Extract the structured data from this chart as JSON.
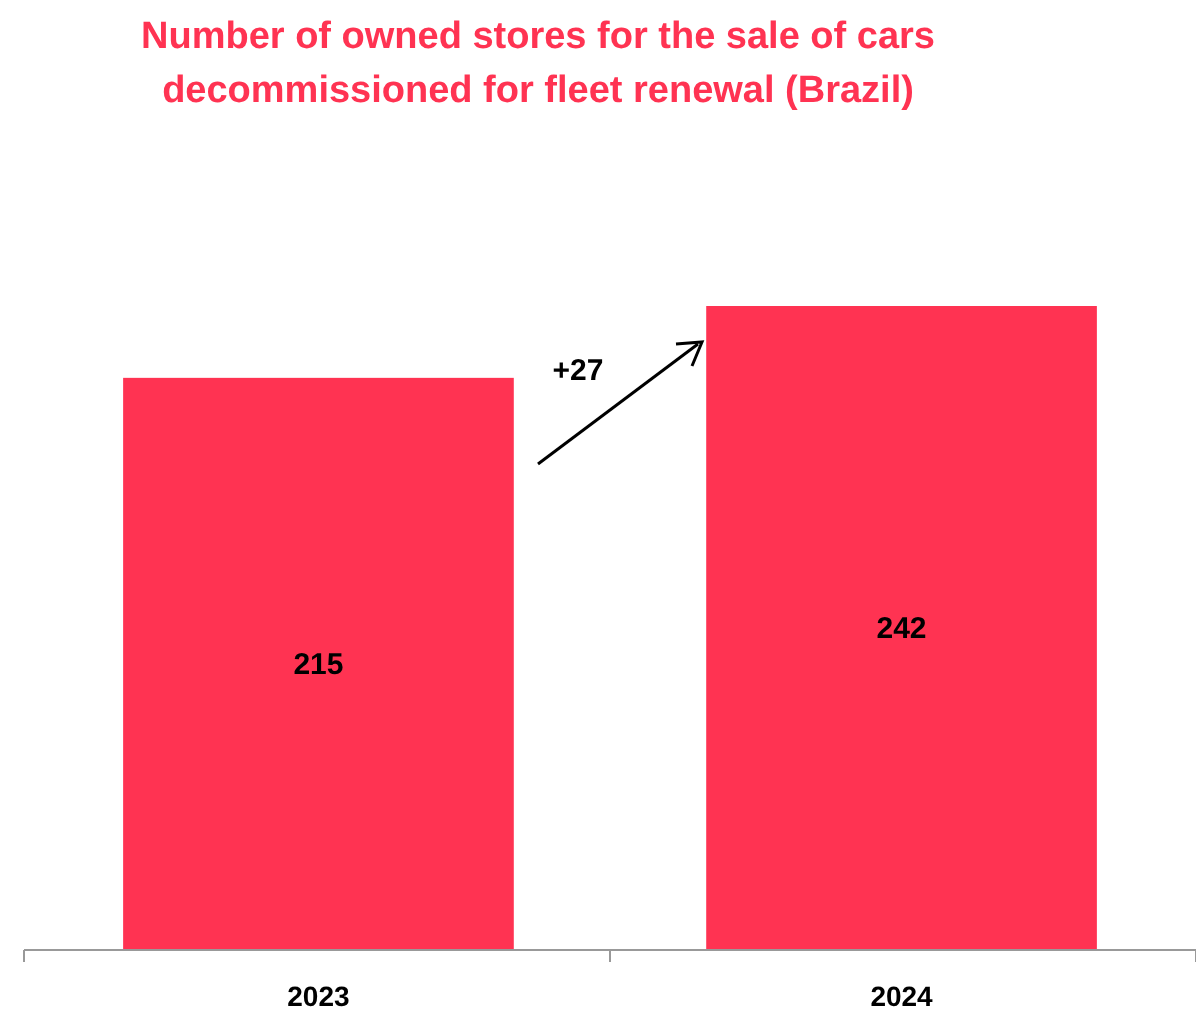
{
  "chart_data": {
    "type": "bar",
    "title": "Number of owned stores for the sale of cars decommissioned for fleet renewal (Brazil)",
    "categories": [
      "2023",
      "2024"
    ],
    "values": [
      215,
      242
    ],
    "color": "#ff3352",
    "data_labels": true,
    "annotations": [
      "+27"
    ]
  }
}
